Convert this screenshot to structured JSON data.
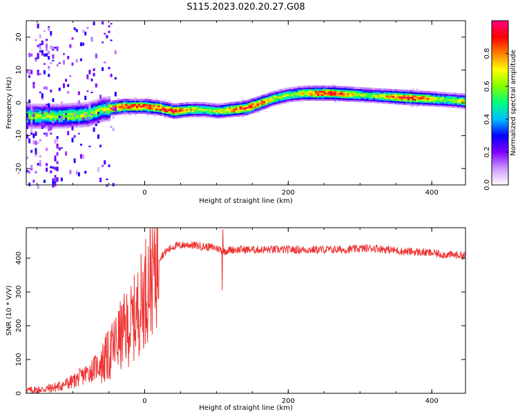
{
  "title": "S115.2023.020.20.27.G08",
  "chart_data": [
    {
      "type": "heatmap",
      "xlabel": "Height of straight line (km)",
      "ylabel": "Frequency (Hz)",
      "xlim": [
        -165,
        447
      ],
      "ylim": [
        -25,
        25
      ],
      "xticks": [
        0,
        200,
        400
      ],
      "yticks": [
        -20,
        -10,
        0,
        10,
        20
      ],
      "colorbar": {
        "label": "Normalized spectral amplitude",
        "range": [
          0,
          1
        ],
        "ticks": [
          0.0,
          0.2,
          0.4,
          0.6,
          0.8
        ],
        "colors": [
          "#ffffff",
          "#cc99ff",
          "#7f00ff",
          "#0000ff",
          "#00bfff",
          "#00ff80",
          "#80ff00",
          "#ffff00",
          "#ff8000",
          "#ff0000",
          "#ff0080"
        ]
      },
      "ridge": {
        "x": [
          -120,
          -80,
          -60,
          -45,
          -30,
          -15,
          0,
          20,
          40,
          60,
          80,
          100,
          120,
          140,
          160,
          180,
          200,
          220,
          260,
          300,
          340,
          380,
          420,
          447
        ],
        "freq": [
          -4,
          -3.5,
          -2,
          -1.5,
          -1,
          -1,
          -1,
          -1.5,
          -2.5,
          -2,
          -2,
          -2.5,
          -2,
          -1.5,
          0,
          1.5,
          2.5,
          3,
          3,
          2.5,
          2,
          1.5,
          1,
          0.5
        ]
      }
    },
    {
      "type": "line",
      "xlabel": "Height of straight line (km)",
      "ylabel": "SNR (10 * V/V)",
      "xlim": [
        -165,
        447
      ],
      "ylim": [
        0,
        490
      ],
      "xticks": [
        0,
        200,
        400
      ],
      "yticks": [
        0,
        100,
        200,
        300,
        400
      ],
      "color": "#ee3333",
      "series": [
        {
          "x": [
            -165,
            -140,
            -120,
            -100,
            -80,
            -60,
            -50,
            -40,
            -30,
            -20,
            -10,
            0,
            10,
            20,
            30,
            40,
            60,
            80,
            100,
            110,
            120,
            140,
            160,
            200,
            240,
            280,
            300,
            320,
            340,
            360,
            380,
            400,
            420,
            447
          ],
          "values": [
            8,
            12,
            20,
            35,
            60,
            90,
            110,
            150,
            180,
            200,
            240,
            300,
            360,
            400,
            420,
            435,
            440,
            435,
            430,
            420,
            425,
            425,
            425,
            425,
            425,
            425,
            428,
            430,
            425,
            420,
            418,
            415,
            410,
            408
          ]
        }
      ],
      "annotations": [
        {
          "x": 108,
          "value": 305
        },
        {
          "x": 109,
          "value": 485
        }
      ]
    }
  ]
}
